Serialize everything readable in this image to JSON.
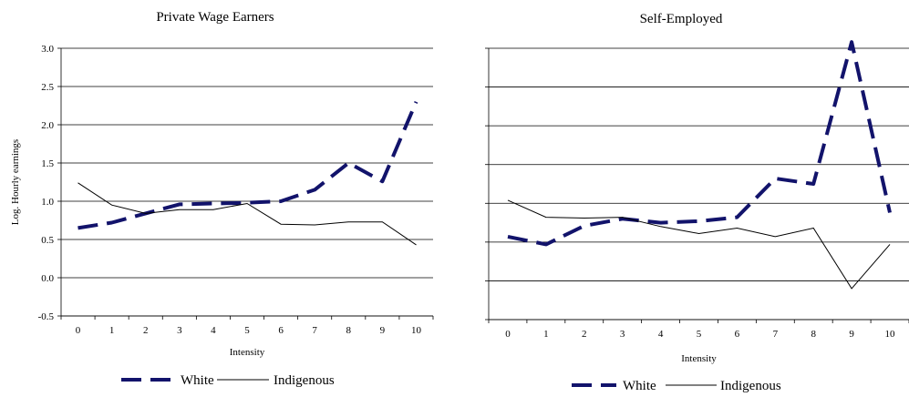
{
  "colors": {
    "white_series": "#12136b",
    "indigenous_series": "#000000",
    "grid": "#000000"
  },
  "chart_data": [
    {
      "type": "line",
      "title": "Private Wage Earners",
      "xlabel": "Intensity",
      "ylabel": "Log. Hourly earnings",
      "x": [
        "0",
        "1",
        "2",
        "3",
        "4",
        "5",
        "6",
        "7",
        "8",
        "9",
        "10"
      ],
      "ylim": [
        -0.5,
        3.0
      ],
      "yticks": [
        "3.0",
        "2.5",
        "2.0",
        "1.5",
        "1.0",
        "0.5",
        "0.0",
        "-0.5"
      ],
      "grid": true,
      "legend": "bottom",
      "series": [
        {
          "name": "White",
          "style": "dashed",
          "values": [
            0.65,
            0.72,
            0.84,
            0.96,
            0.97,
            0.98,
            1.0,
            1.15,
            1.5,
            1.26,
            2.3
          ]
        },
        {
          "name": "Indigenous",
          "style": "solid",
          "values": [
            1.24,
            0.95,
            0.84,
            0.89,
            0.89,
            0.97,
            0.7,
            0.69,
            0.73,
            0.73,
            0.43
          ]
        }
      ]
    },
    {
      "type": "line",
      "title": "Self-Employed",
      "xlabel": "Intensity",
      "ylabel": "",
      "x": [
        "0",
        "1",
        "2",
        "3",
        "4",
        "5",
        "6",
        "7",
        "8",
        "9",
        "10"
      ],
      "ylim": [
        -0.5,
        3.0
      ],
      "yticks": [],
      "grid": true,
      "legend": "bottom",
      "series": [
        {
          "name": "White",
          "style": "dashed",
          "values": [
            0.57,
            0.47,
            0.71,
            0.8,
            0.75,
            0.77,
            0.82,
            1.32,
            1.25,
            3.08,
            0.88
          ]
        },
        {
          "name": "Indigenous",
          "style": "solid",
          "values": [
            1.04,
            0.82,
            0.81,
            0.82,
            0.7,
            0.61,
            0.68,
            0.57,
            0.68,
            -0.1,
            0.47
          ]
        }
      ]
    }
  ]
}
